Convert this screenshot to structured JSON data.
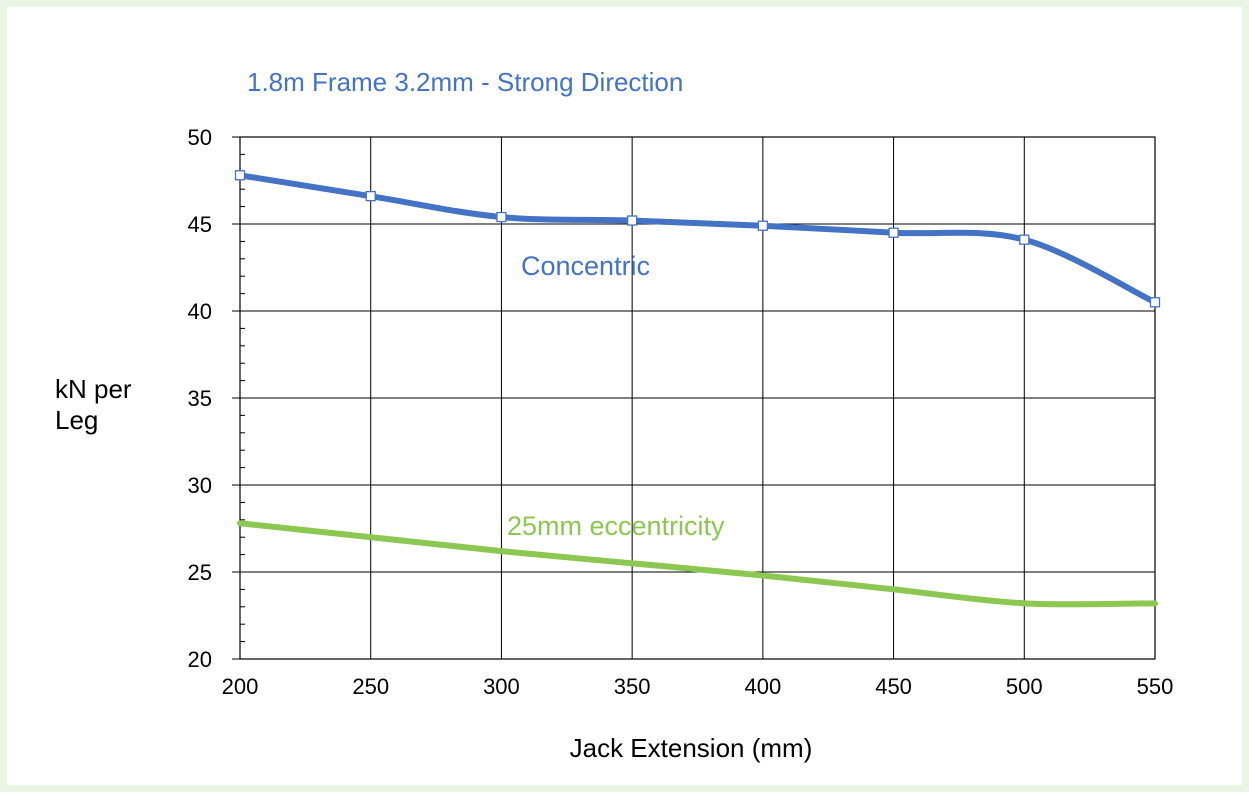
{
  "chart_data": {
    "type": "line",
    "title": "1.8m Frame 3.2mm - Strong Direction",
    "xlabel": "Jack Extension (mm)",
    "ylabel": [
      "kN per",
      "Leg"
    ],
    "xlim": [
      200,
      550
    ],
    "ylim": [
      20,
      50
    ],
    "x_ticks": [
      200,
      250,
      300,
      350,
      400,
      450,
      500,
      550
    ],
    "y_ticks": [
      20,
      25,
      30,
      35,
      40,
      45,
      50
    ],
    "grid": true,
    "colors": {
      "title": "#4472c4",
      "concentric": "#4472c4",
      "eccentric": "#8cc751",
      "grid": "#000000"
    },
    "series": [
      {
        "name": "Concentric",
        "color": "#4472c4",
        "markers": true,
        "x": [
          200,
          250,
          300,
          350,
          400,
          450,
          500,
          550
        ],
        "y": [
          47.8,
          46.6,
          45.4,
          45.2,
          44.9,
          44.5,
          44.1,
          40.5
        ]
      },
      {
        "name": "25mm eccentricity",
        "color": "#8cc751",
        "markers": false,
        "x": [
          200,
          250,
          300,
          350,
          400,
          450,
          500,
          550
        ],
        "y": [
          27.8,
          27.0,
          26.2,
          25.5,
          24.8,
          24.0,
          23.2,
          23.2
        ]
      }
    ]
  }
}
